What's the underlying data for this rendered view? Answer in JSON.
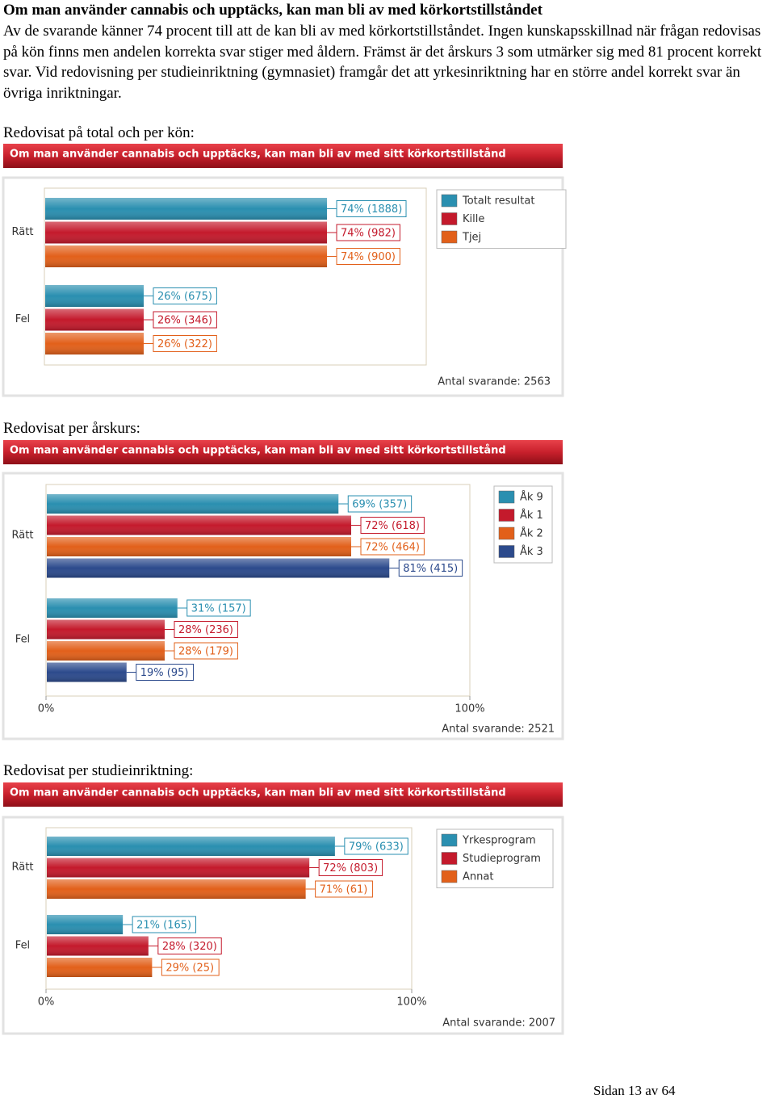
{
  "heading": "Om man använder cannabis och upptäcks, kan man bli av med körkortstillståndet",
  "paragraph": "Av de svarande känner 74 procent till att de kan bli av med körkortstillståndet. Ingen kunskapsskillnad när frågan redovisas på kön finns men andelen korrekta svar stiger med åldern. Främst är det årskurs 3 som utmärker sig med 81 procent korrekt svar. Vid redovisning per studieinriktning (gymnasiet) framgår det att yrkesinriktning har en större andel korrekt svar än övriga inriktningar.",
  "section_headings": [
    "Redovisat på total och per kön:",
    "Redovisat per årskurs:",
    "Redovisat per studieinriktning:"
  ],
  "chart_data": [
    {
      "type": "hbar",
      "title": "Om man använder cannabis och upptäcks, kan man bli av med sitt körkortstillstånd",
      "categories": [
        "Rätt",
        "Fel"
      ],
      "xlim": [
        0,
        100
      ],
      "series": [
        {
          "name": "Totalt resultat",
          "color": "#2a8fb0",
          "values": [
            74,
            26
          ],
          "value_labels": [
            "74% (1888)",
            "26% (675)"
          ]
        },
        {
          "name": "Kille",
          "color": "#c41a2c",
          "values": [
            74,
            26
          ],
          "value_labels": [
            "74% (982)",
            "26% (346)"
          ]
        },
        {
          "name": "Tjej",
          "color": "#e2601a",
          "values": [
            74,
            26
          ],
          "value_labels": [
            "74% (900)",
            "26% (322)"
          ]
        }
      ],
      "note": "Antal svarande: 2563"
    },
    {
      "type": "hbar",
      "title": "Om man använder cannabis och upptäcks, kan man bli av med sitt körkortstillstånd",
      "categories": [
        "Rätt",
        "Fel"
      ],
      "xlim": [
        0,
        100
      ],
      "xticks": [
        {
          "value": 0,
          "label": "0%"
        },
        {
          "value": 100,
          "label": "100%"
        }
      ],
      "series": [
        {
          "name": "Åk 9",
          "color": "#2a8fb0",
          "values": [
            69,
            31
          ],
          "value_labels": [
            "69% (357)",
            "31% (157)"
          ]
        },
        {
          "name": "Åk 1",
          "color": "#c41a2c",
          "values": [
            72,
            28
          ],
          "value_labels": [
            "72% (618)",
            "28% (236)"
          ]
        },
        {
          "name": "Åk 2",
          "color": "#e2601a",
          "values": [
            72,
            28
          ],
          "value_labels": [
            "72% (464)",
            "28% (179)"
          ]
        },
        {
          "name": "Åk 3",
          "color": "#2c4a8c",
          "values": [
            81,
            19
          ],
          "value_labels": [
            "81% (415)",
            "19% (95)"
          ]
        }
      ],
      "note": "Antal svarande: 2521"
    },
    {
      "type": "hbar",
      "title": "Om man använder cannabis och upptäcks, kan man bli av med sitt körkortstillstånd",
      "categories": [
        "Rätt",
        "Fel"
      ],
      "xlim": [
        0,
        100
      ],
      "xticks": [
        {
          "value": 0,
          "label": "0%"
        },
        {
          "value": 100,
          "label": "100%"
        }
      ],
      "series": [
        {
          "name": "Yrkesprogram",
          "color": "#2a8fb0",
          "values": [
            79,
            21
          ],
          "value_labels": [
            "79% (633)",
            "21% (165)"
          ]
        },
        {
          "name": "Studieprogram",
          "color": "#c41a2c",
          "values": [
            72,
            28
          ],
          "value_labels": [
            "72% (803)",
            "28% (320)"
          ]
        },
        {
          "name": "Annat",
          "color": "#e2601a",
          "values": [
            71,
            29
          ],
          "value_labels": [
            "71% (61)",
            "29% (25)"
          ]
        }
      ],
      "note": "Antal svarande: 2007"
    }
  ],
  "footer": "Sidan 13 av 64"
}
